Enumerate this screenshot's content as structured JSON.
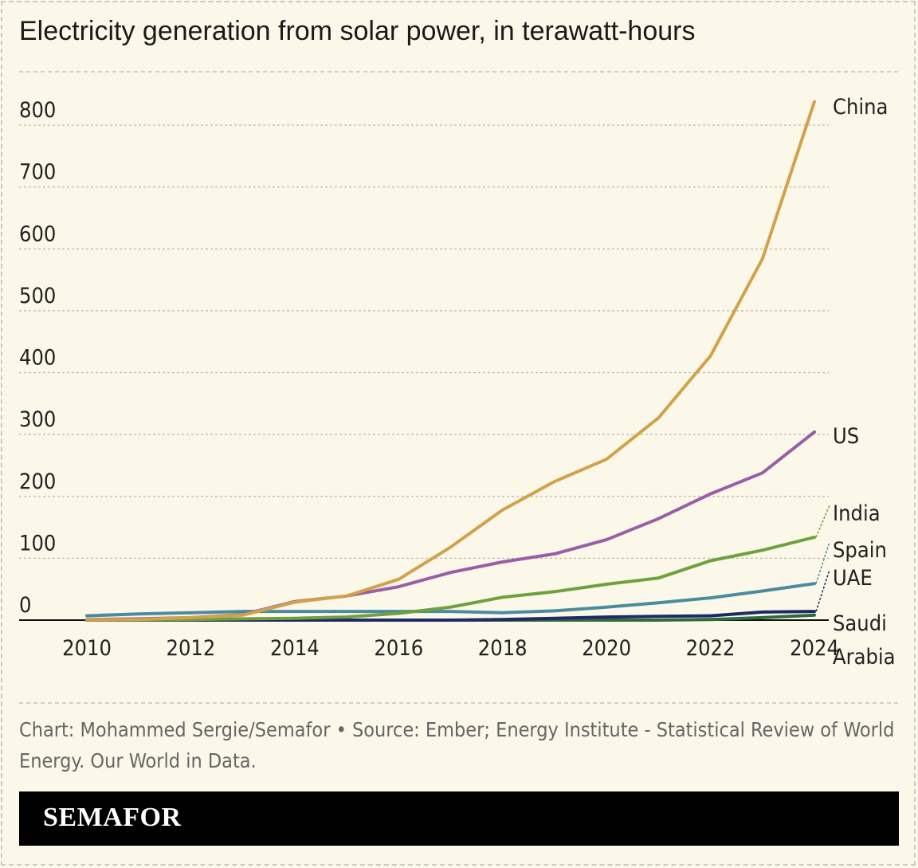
{
  "chart_data": {
    "type": "line",
    "title": "Electricity generation from solar power, in terawatt-hours",
    "xlabel": "",
    "ylabel": "",
    "x": [
      2010,
      2011,
      2012,
      2013,
      2014,
      2015,
      2016,
      2017,
      2018,
      2019,
      2020,
      2021,
      2022,
      2023,
      2024
    ],
    "x_ticks": [
      2010,
      2012,
      2014,
      2016,
      2018,
      2020,
      2022,
      2024
    ],
    "y_ticks": [
      0,
      100,
      200,
      300,
      400,
      500,
      600,
      700,
      800
    ],
    "xlim": [
      2010,
      2024
    ],
    "ylim": [
      0,
      800
    ],
    "grid": true,
    "legend": "direct labels at right",
    "series": [
      {
        "name": "China",
        "color": "#d1a24b",
        "values": [
          0.7,
          1,
          4,
          8,
          29,
          39,
          66,
          118,
          178,
          224,
          260,
          327,
          427,
          584,
          838
        ]
      },
      {
        "name": "US",
        "color": "#9a5ea6",
        "values": [
          1,
          2,
          4,
          9,
          30,
          39,
          54,
          77,
          94,
          107,
          130,
          164,
          204,
          238,
          304
        ]
      },
      {
        "name": "India",
        "color": "#6ea13d",
        "values": [
          0,
          0.5,
          1,
          2,
          3,
          5,
          11,
          21,
          37,
          46,
          58,
          68,
          96,
          113,
          134
        ]
      },
      {
        "name": "Spain",
        "color": "#4b8ba0",
        "values": [
          7,
          10,
          12,
          14,
          14,
          14,
          14,
          14,
          12,
          15,
          21,
          28,
          36,
          47,
          59
        ]
      },
      {
        "name": "UAE",
        "color": "#1f2a66",
        "values": [
          0,
          0,
          0,
          0,
          0,
          0,
          0,
          0,
          1,
          3,
          5,
          6,
          7,
          13,
          14
        ]
      },
      {
        "name": "Saudi Arabia",
        "color": "#2f6b3d",
        "values": [
          0,
          0,
          0,
          0,
          0,
          0,
          0,
          0,
          0,
          0,
          0,
          0,
          1,
          4,
          8
        ]
      }
    ]
  },
  "footer": {
    "credit": "Chart: Mohammed Sergie/Semafor • Source: Ember; Energy Institute - Statistical Review of World Energy. Our World in Data."
  },
  "brand": "SEMAFOR",
  "colors": {
    "background": "#fbf8e9",
    "grid": "#bdb9a8"
  }
}
